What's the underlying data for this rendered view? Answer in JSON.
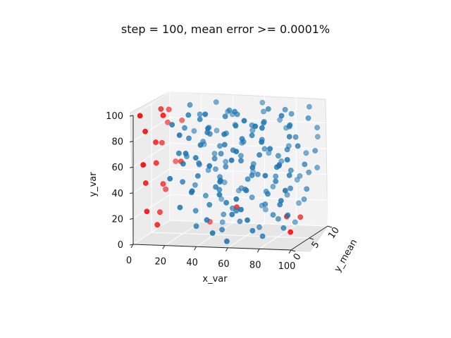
{
  "chart_data": {
    "type": "scatter",
    "projection": "3d",
    "title": "step = 100, mean error >= 0.0001%",
    "xlabel": "x_var",
    "ylabel": "y_mean",
    "zlabel": "y_var",
    "x_ticks": [
      "0",
      "20",
      "40",
      "60",
      "80",
      "100"
    ],
    "y_ticks": [
      "0",
      "5",
      "10"
    ],
    "z_ticks": [
      "0",
      "20",
      "40",
      "60",
      "80",
      "100"
    ],
    "xlim": [
      0,
      100
    ],
    "ylim": [
      0,
      10
    ],
    "zlim": [
      0,
      100
    ],
    "grid": true,
    "colors": {
      "pass": "#1f77b4",
      "fail": "#ff0000"
    },
    "series": [
      {
        "color_key": "pass",
        "points": [
          [
            22,
            6,
            98
          ],
          [
            28,
            3,
            96
          ],
          [
            34,
            8,
            97
          ],
          [
            41,
            2,
            99
          ],
          [
            47,
            6,
            95
          ],
          [
            55,
            4,
            98
          ],
          [
            61,
            9,
            96
          ],
          [
            68,
            1,
            97
          ],
          [
            74,
            5,
            99
          ],
          [
            80,
            7,
            95
          ],
          [
            87,
            3,
            98
          ],
          [
            93,
            8,
            96
          ],
          [
            20,
            2,
            90
          ],
          [
            26,
            7,
            89
          ],
          [
            33,
            4,
            91
          ],
          [
            39,
            9,
            88
          ],
          [
            45,
            1,
            90
          ],
          [
            52,
            6,
            92
          ],
          [
            58,
            3,
            89
          ],
          [
            64,
            8,
            91
          ],
          [
            71,
            5,
            88
          ],
          [
            77,
            2,
            90
          ],
          [
            84,
            7,
            92
          ],
          [
            90,
            4,
            89
          ],
          [
            97,
            6,
            91
          ],
          [
            21,
            5,
            82
          ],
          [
            27,
            1,
            84
          ],
          [
            34,
            6,
            81
          ],
          [
            40,
            3,
            83
          ],
          [
            46,
            8,
            80
          ],
          [
            53,
            2,
            84
          ],
          [
            59,
            7,
            82
          ],
          [
            66,
            4,
            80
          ],
          [
            72,
            9,
            83
          ],
          [
            79,
            1,
            81
          ],
          [
            85,
            6,
            84
          ],
          [
            92,
            3,
            82
          ],
          [
            98,
            8,
            80
          ],
          [
            20,
            8,
            74
          ],
          [
            26,
            4,
            76
          ],
          [
            32,
            9,
            73
          ],
          [
            38,
            2,
            75
          ],
          [
            45,
            6,
            77
          ],
          [
            51,
            3,
            74
          ],
          [
            57,
            8,
            76
          ],
          [
            63,
            1,
            73
          ],
          [
            70,
            5,
            75
          ],
          [
            76,
            9,
            77
          ],
          [
            82,
            2,
            74
          ],
          [
            89,
            6,
            76
          ],
          [
            95,
            4,
            73
          ],
          [
            22,
            3,
            66
          ],
          [
            28,
            7,
            68
          ],
          [
            35,
            2,
            65
          ],
          [
            41,
            6,
            67
          ],
          [
            48,
            9,
            64
          ],
          [
            54,
            4,
            68
          ],
          [
            60,
            1,
            66
          ],
          [
            67,
            7,
            64
          ],
          [
            73,
            3,
            67
          ],
          [
            80,
            8,
            65
          ],
          [
            86,
            5,
            68
          ],
          [
            93,
            2,
            66
          ],
          [
            99,
            7,
            64
          ],
          [
            20,
            6,
            58
          ],
          [
            27,
            2,
            60
          ],
          [
            33,
            8,
            57
          ],
          [
            40,
            5,
            59
          ],
          [
            46,
            1,
            61
          ],
          [
            52,
            7,
            58
          ],
          [
            59,
            4,
            60
          ],
          [
            65,
            9,
            57
          ],
          [
            71,
            2,
            59
          ],
          [
            78,
            6,
            61
          ],
          [
            84,
            3,
            58
          ],
          [
            91,
            8,
            60
          ],
          [
            97,
            5,
            57
          ],
          [
            21,
            1,
            50
          ],
          [
            28,
            6,
            52
          ],
          [
            34,
            3,
            49
          ],
          [
            40,
            8,
            51
          ],
          [
            47,
            5,
            53
          ],
          [
            53,
            1,
            50
          ],
          [
            60,
            7,
            52
          ],
          [
            66,
            4,
            49
          ],
          [
            73,
            9,
            51
          ],
          [
            79,
            2,
            53
          ],
          [
            86,
            6,
            50
          ],
          [
            92,
            3,
            52
          ],
          [
            98,
            8,
            49
          ],
          [
            22,
            4,
            42
          ],
          [
            29,
            8,
            44
          ],
          [
            35,
            1,
            41
          ],
          [
            41,
            6,
            43
          ],
          [
            48,
            3,
            45
          ],
          [
            55,
            9,
            42
          ],
          [
            61,
            5,
            44
          ],
          [
            67,
            2,
            41
          ],
          [
            74,
            7,
            43
          ],
          [
            81,
            4,
            45
          ],
          [
            87,
            8,
            42
          ],
          [
            94,
            1,
            44
          ],
          [
            23,
            7,
            34
          ],
          [
            30,
            3,
            36
          ],
          [
            37,
            9,
            33
          ],
          [
            43,
            5,
            35
          ],
          [
            50,
            2,
            37
          ],
          [
            57,
            6,
            34
          ],
          [
            63,
            1,
            36
          ],
          [
            70,
            8,
            33
          ],
          [
            76,
            4,
            35
          ],
          [
            83,
            9,
            37
          ],
          [
            89,
            2,
            34
          ],
          [
            96,
            6,
            36
          ],
          [
            25,
            2,
            26
          ],
          [
            32,
            6,
            28
          ],
          [
            39,
            4,
            25
          ],
          [
            46,
            9,
            27
          ],
          [
            52,
            3,
            29
          ],
          [
            59,
            7,
            26
          ],
          [
            66,
            1,
            28
          ],
          [
            72,
            5,
            25
          ],
          [
            79,
            8,
            27
          ],
          [
            86,
            3,
            29
          ],
          [
            92,
            7,
            26
          ],
          [
            28,
            5,
            18
          ],
          [
            35,
            9,
            20
          ],
          [
            42,
            2,
            17
          ],
          [
            49,
            6,
            19
          ],
          [
            56,
            4,
            21
          ],
          [
            63,
            8,
            18
          ],
          [
            70,
            1,
            20
          ],
          [
            77,
            5,
            17
          ],
          [
            84,
            9,
            19
          ],
          [
            91,
            3,
            21
          ],
          [
            33,
            3,
            10
          ],
          [
            41,
            7,
            12
          ],
          [
            48,
            1,
            9
          ],
          [
            56,
            5,
            11
          ],
          [
            63,
            9,
            13
          ],
          [
            71,
            2,
            10
          ],
          [
            78,
            6,
            12
          ],
          [
            86,
            4,
            9
          ],
          [
            38,
            8,
            4
          ],
          [
            47,
            4,
            6
          ],
          [
            57,
            1,
            3
          ],
          [
            66,
            6,
            5
          ],
          [
            75,
            3,
            4
          ],
          [
            84,
            8,
            6
          ],
          [
            24,
            9,
            62
          ],
          [
            30,
            5,
            55
          ],
          [
            36,
            7,
            47
          ],
          [
            43,
            4,
            39
          ],
          [
            50,
            8,
            31
          ],
          [
            44,
            5,
            63
          ],
          [
            56,
            6,
            71
          ],
          [
            62,
            3,
            79
          ],
          [
            69,
            6,
            87
          ],
          [
            75,
            1,
            93
          ],
          [
            88,
            5,
            38
          ],
          [
            95,
            7,
            47
          ],
          [
            31,
            1,
            70
          ],
          [
            37,
            5,
            78
          ],
          [
            42,
            9,
            86
          ],
          [
            49,
            4,
            94
          ],
          [
            65,
            6,
            46
          ],
          [
            58,
            2,
            22
          ],
          [
            68,
            7,
            31
          ],
          [
            81,
            5,
            56
          ],
          [
            90,
            1,
            63
          ],
          [
            96,
            9,
            71
          ]
        ]
      },
      {
        "color_key": "fail",
        "points": [
          [
            2,
            1,
            98
          ],
          [
            6,
            5,
            96
          ],
          [
            4,
            8,
            90
          ],
          [
            3,
            2,
            84
          ],
          [
            1,
            9,
            78
          ],
          [
            5,
            4,
            72
          ],
          [
            2,
            7,
            66
          ],
          [
            4,
            1,
            60
          ],
          [
            3,
            5,
            54
          ],
          [
            6,
            9,
            48
          ],
          [
            1,
            3,
            42
          ],
          [
            5,
            6,
            36
          ],
          [
            2,
            8,
            28
          ],
          [
            4,
            2,
            22
          ],
          [
            3,
            6,
            14
          ],
          [
            6,
            4,
            8
          ],
          [
            12,
            3,
            95
          ],
          [
            14,
            7,
            52
          ],
          [
            10,
            9,
            80
          ],
          [
            88,
            4,
            18
          ],
          [
            92,
            6,
            14
          ],
          [
            95,
            2,
            10
          ],
          [
            54,
            5,
            22
          ],
          [
            30,
            8,
            4
          ]
        ]
      }
    ]
  }
}
